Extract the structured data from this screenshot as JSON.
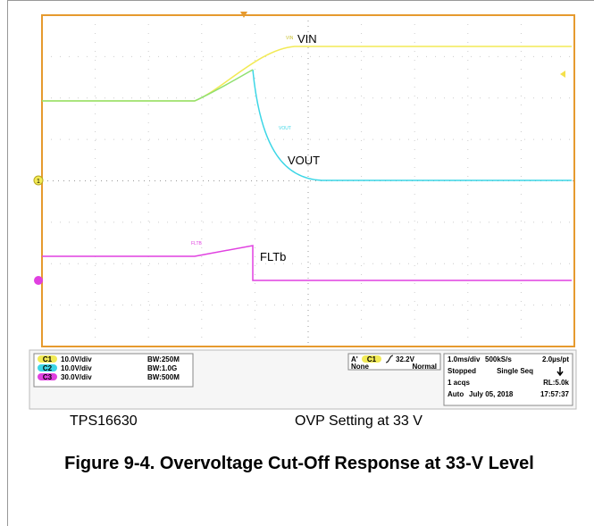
{
  "figure": {
    "scope": {
      "trace_labels": [
        "VIN",
        "VOUT",
        "FLTb"
      ],
      "trace_tags": [
        "VIN",
        "VOUT",
        "FLTB"
      ],
      "channel_marker": "1",
      "channels": [
        {
          "badge": "C1",
          "scale": "10.0V/div",
          "bandwidth": "BW:250M"
        },
        {
          "badge": "C2",
          "scale": "10.0V/div",
          "bandwidth": "BW:1.0G"
        },
        {
          "badge": "C3",
          "scale": "30.0V/div",
          "bandwidth": "BW:500M"
        }
      ],
      "trigger": {
        "source": "A'",
        "badge": "C1",
        "level": "32.2V",
        "coupling": "None",
        "mode": "Normal"
      },
      "acquisition": [
        [
          "1.0ms/div",
          "500kS/s",
          "2.0µs/pt"
        ],
        [
          "Stopped",
          "Single Seq"
        ],
        [
          "1 acqs",
          "RL:5.0k"
        ],
        [
          "Auto",
          "July 05, 2018",
          "17:57:37"
        ]
      ]
    },
    "labels": [
      "TPS16630",
      "OVP Setting at 33 V"
    ],
    "caption": "Figure 9-4. Overvoltage Cut-Off Response at 33-V Level"
  }
}
